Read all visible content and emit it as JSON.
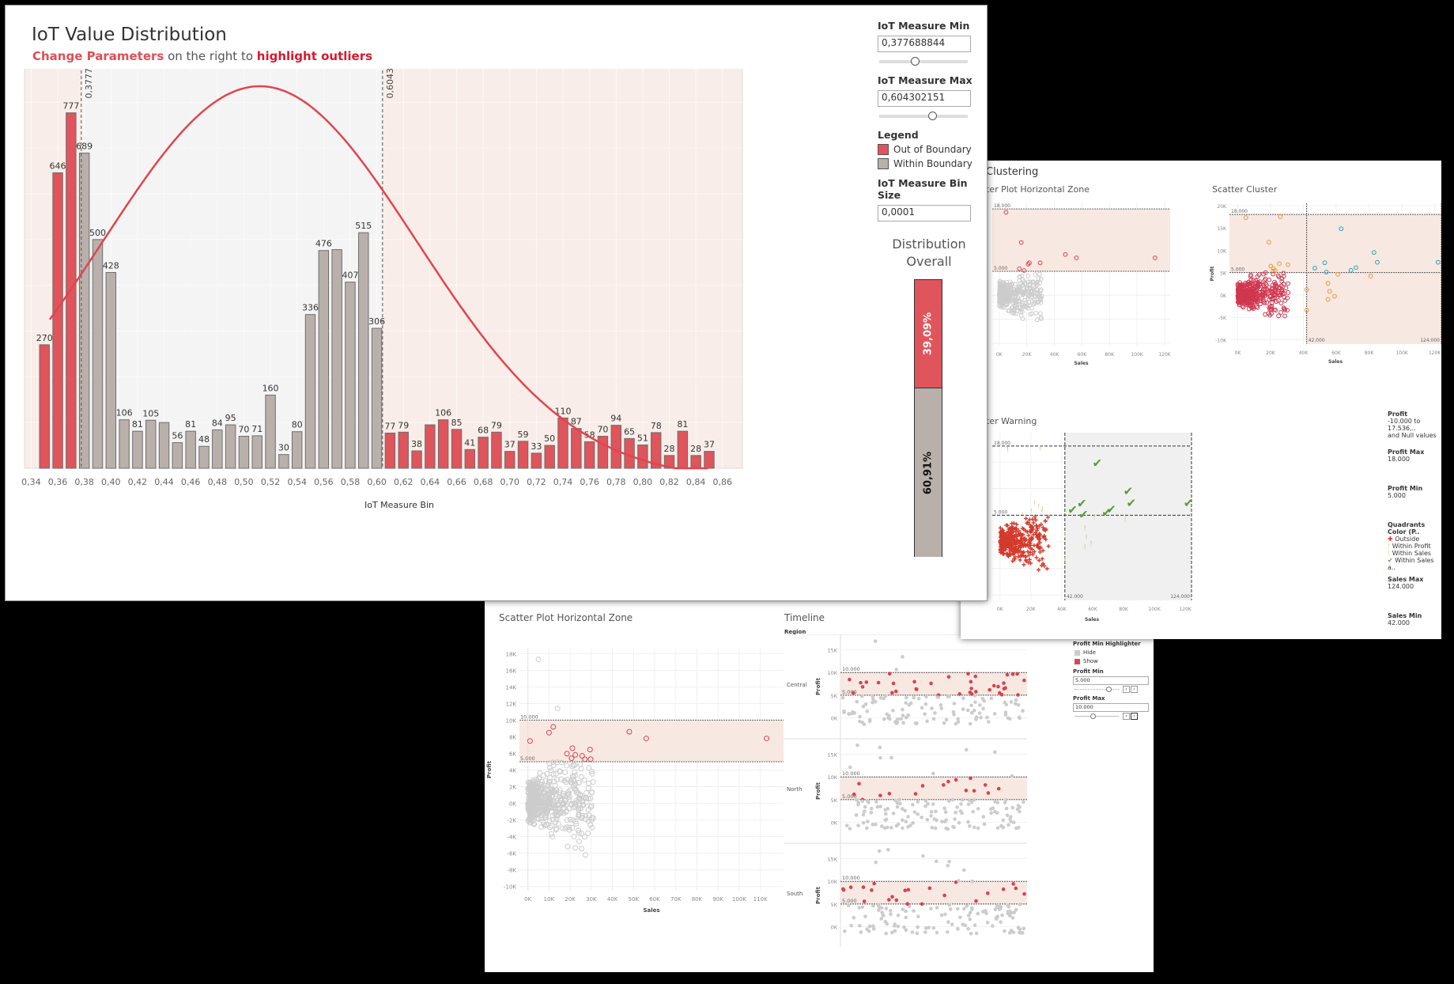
{
  "main": {
    "title": "IoT Value Distribution",
    "subtitle": {
      "part1": "Change Parameters",
      "part2": " on the right to ",
      "part3": "highlight outliers"
    },
    "params": {
      "min_label": "IoT Measure Min",
      "min_value": "0,377688844",
      "max_label": "IoT Measure Max",
      "max_value": "0,604302151",
      "legend_title": "Legend",
      "legend": [
        {
          "label": "Out of Boundary",
          "color": "#e0545b"
        },
        {
          "label": "Within Boundary",
          "color": "#bab0ab"
        }
      ],
      "bin_label": "IoT Measure Bin Size",
      "bin_value": "0,0001",
      "dist_title_1": "Distribution",
      "dist_title_2": "Overall",
      "out_pct": "39,09%",
      "within_pct": "60,91%"
    },
    "xlabel": "IoT Measure Bin",
    "ref_min": "0,3777",
    "ref_max": "0,6043"
  },
  "chart_data": [
    {
      "type": "bar",
      "title": "IoT Value Distribution",
      "xlabel": "IoT Measure Bin",
      "ylabel": "",
      "x_ticks": [
        "0,34",
        "0,36",
        "0,38",
        "0,40",
        "0,42",
        "0,44",
        "0,46",
        "0,48",
        "0,50",
        "0,52",
        "0,54",
        "0,56",
        "0,58",
        "0,60",
        "0,62",
        "0,64",
        "0,66",
        "0,68",
        "0,70",
        "0,72",
        "0,74",
        "0,76",
        "0,78",
        "0,80",
        "0,82",
        "0,84",
        "0,86"
      ],
      "categories": [
        0.35,
        0.36,
        0.37,
        0.38,
        0.39,
        0.4,
        0.41,
        0.42,
        0.43,
        0.44,
        0.45,
        0.46,
        0.47,
        0.48,
        0.49,
        0.5,
        0.51,
        0.52,
        0.53,
        0.54,
        0.55,
        0.56,
        0.57,
        0.58,
        0.59,
        0.6,
        0.61,
        0.62,
        0.63,
        0.64,
        0.65,
        0.66,
        0.67,
        0.68,
        0.69,
        0.7,
        0.71,
        0.72,
        0.73,
        0.74,
        0.75,
        0.76,
        0.77,
        0.78,
        0.79,
        0.8,
        0.81,
        0.82,
        0.83,
        0.84,
        0.85
      ],
      "values": [
        270,
        646,
        777,
        689,
        500,
        428,
        106,
        81,
        105,
        100,
        56,
        81,
        48,
        84,
        95,
        70,
        71,
        160,
        30,
        80,
        336,
        476,
        478,
        407,
        515,
        306,
        77,
        79,
        38,
        95,
        106,
        85,
        41,
        68,
        79,
        37,
        59,
        33,
        50,
        110,
        87,
        58,
        70,
        94,
        65,
        51,
        78,
        28,
        81,
        28,
        37
      ],
      "labels_shown": [
        true,
        true,
        true,
        true,
        true,
        true,
        true,
        true,
        true,
        false,
        true,
        true,
        true,
        true,
        true,
        true,
        true,
        true,
        true,
        true,
        true,
        true,
        false,
        true,
        true,
        true,
        true,
        true,
        true,
        false,
        true,
        true,
        true,
        true,
        true,
        true,
        true,
        true,
        true,
        true,
        true,
        true,
        true,
        true,
        true,
        true,
        true,
        true,
        true,
        true,
        true
      ],
      "status": [
        "out",
        "out",
        "out",
        "in",
        "in",
        "in",
        "in",
        "in",
        "in",
        "in",
        "in",
        "in",
        "in",
        "in",
        "in",
        "in",
        "in",
        "in",
        "in",
        "in",
        "in",
        "in",
        "in",
        "in",
        "in",
        "in",
        "out",
        "out",
        "out",
        "out",
        "out",
        "out",
        "out",
        "out",
        "out",
        "out",
        "out",
        "out",
        "out",
        "out",
        "out",
        "out",
        "out",
        "out",
        "out",
        "out",
        "out",
        "out",
        "out",
        "out",
        "out"
      ],
      "reference_lines": [
        0.3777,
        0.6043
      ],
      "overlay": "normal distribution curve (red), peak near 0.51",
      "ylim": [
        0,
        830
      ],
      "grid": true,
      "legend": [
        "Out of Boundary",
        "Within Boundary"
      ]
    },
    {
      "type": "bar",
      "title": "Distribution Overall",
      "categories": [
        "Out of Boundary",
        "Within Boundary"
      ],
      "values": [
        39.09,
        60.91
      ]
    },
    {
      "type": "scatter",
      "title": "Scatter Plot Horizontal Zone",
      "xlabel": "Sales",
      "ylabel": "Profit",
      "x_ticks": [
        "0K",
        "10K",
        "20K",
        "30K",
        "40K",
        "50K",
        "60K",
        "70K",
        "80K",
        "90K",
        "100K",
        "110K"
      ],
      "y_ticks": [
        "18K",
        "16K",
        "14K",
        "12K",
        "10K",
        "8K",
        "6K",
        "4K",
        "2K",
        "0K",
        "-2K",
        "-4K",
        "-6K",
        "-8K",
        "-10K"
      ],
      "band": {
        "min": 5000,
        "max": 10000,
        "min_label": "5.000",
        "max_label": "10.000"
      }
    },
    {
      "type": "scatter",
      "title": "Scatter Cluster",
      "xlabel": "Sales",
      "ylabel": "Profit",
      "x_ticks": [
        "0K",
        "20K",
        "40K",
        "60K",
        "80K",
        "100K",
        "120K"
      ],
      "y_ticks": [
        "20K",
        "15K",
        "10K",
        "5K",
        "0K",
        "-5K",
        "-10K"
      ],
      "ref_lines": {
        "profit_max": "18.000",
        "profit_min": "5.000",
        "sales_min": "42.000",
        "sales_max": "124.000"
      },
      "series_colors": [
        "#d0364f",
        "#f0962e",
        "#1fa5b8"
      ]
    },
    {
      "type": "scatter",
      "title": "Scatter Warning",
      "xlabel": "Sales",
      "x_ticks": [
        "0K",
        "20K",
        "40K",
        "60K",
        "80K",
        "100K",
        "120K"
      ],
      "ref_lines": {
        "profit_max": "18.000",
        "profit_min": "5.000",
        "sales_min": "42.000",
        "sales_max": "124.000"
      }
    },
    {
      "type": "scatter",
      "title": "Timeline",
      "facet": "Region",
      "facets": [
        "Central",
        "North",
        "South"
      ],
      "ylabel": "Profit",
      "y_ticks": [
        "15K",
        "10K",
        "5K",
        "0K"
      ],
      "band": {
        "min_label": "5.000",
        "max_label": "10.000"
      }
    }
  ],
  "right": {
    "section_title": "Clustering",
    "chart1_title": "ter Plot Horizontal Zone",
    "chart2_title": "Scatter Cluster",
    "chart3_title": "ter Warning",
    "side": {
      "profit_label": "Profit",
      "profit_value": "-10.000 to 17.536,..",
      "profit_value2": "and Null values",
      "profit_max_label": "Profit Max",
      "profit_max": "18.000",
      "profit_min_label": "Profit Min",
      "profit_min": "5.000",
      "quad_title": "Quadrants Color (P..",
      "quad_items": [
        {
          "label": "Outside"
        },
        {
          "label": "Within Profit"
        },
        {
          "label": "Within Sales"
        },
        {
          "label": "Within Sales a.."
        }
      ],
      "sales_max_label": "Sales Max",
      "sales_max": "124.000",
      "sales_min_label": "Sales Min",
      "sales_min": "42.000"
    },
    "axis": {
      "sales": "Sales",
      "profit": "Profit"
    }
  },
  "bottom": {
    "scatter_title": "Scatter Plot Horizontal Zone",
    "timeline_title": "Timeline",
    "region_header": "Region",
    "regions": [
      "Central",
      "North",
      "South"
    ],
    "side": {
      "highlighter_title": "Profit Min Highlighter",
      "hide": "Hide",
      "show": "Show",
      "profit_min_label": "Profit Min",
      "profit_min": "5.000",
      "profit_max_label": "Profit Max",
      "profit_max": "10.000"
    },
    "axis": {
      "sales": "Sales",
      "profit": "Profit"
    }
  }
}
